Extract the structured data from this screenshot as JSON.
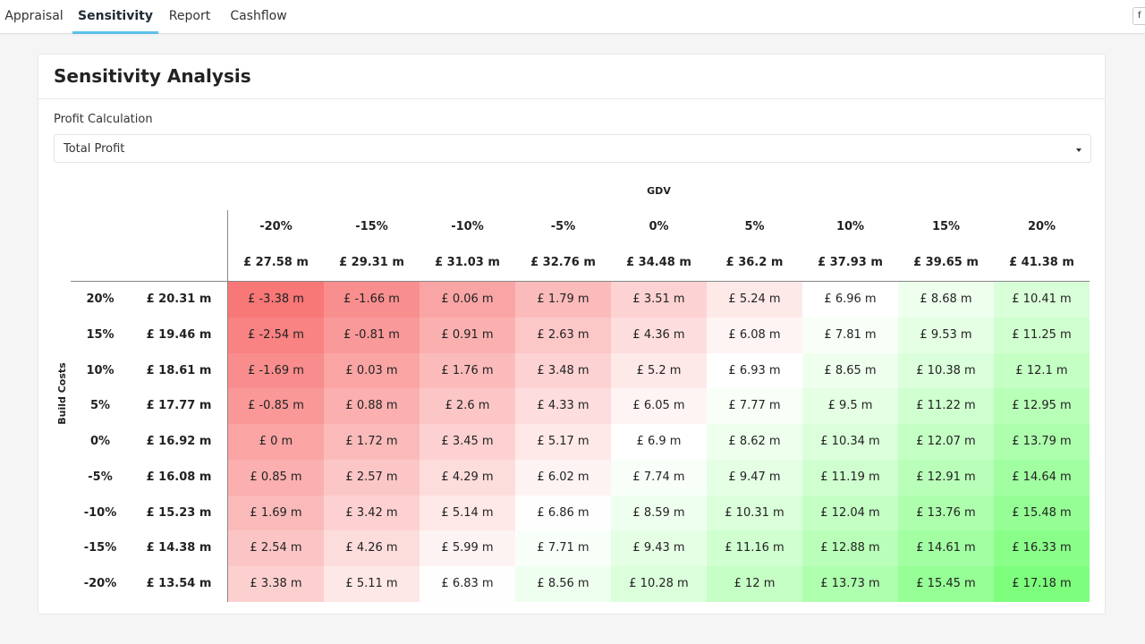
{
  "tabs": [
    {
      "label": "Appraisal",
      "active": false
    },
    {
      "label": "Sensitivity",
      "active": true
    },
    {
      "label": "Report",
      "active": false
    },
    {
      "label": "Cashflow",
      "active": false
    }
  ],
  "corner_button": {
    "label": "f"
  },
  "card": {
    "title": "Sensitivity Analysis"
  },
  "profit_calc": {
    "label": "Profit Calculation",
    "value": "Total Profit",
    "icon": "chevron-down-icon"
  },
  "table": {
    "gdv_title": "GDV",
    "build_costs_title": "Build Costs",
    "gdv_pct": [
      "-20%",
      "-15%",
      "-10%",
      "-5%",
      "0%",
      "5%",
      "10%",
      "15%",
      "20%"
    ],
    "gdv_values": [
      "£ 27.58 m",
      "£ 29.31 m",
      "£ 31.03 m",
      "£ 32.76 m",
      "£ 34.48 m",
      "£ 36.2 m",
      "£ 37.93 m",
      "£ 39.65 m",
      "£ 41.38 m"
    ],
    "build_pct": [
      "20%",
      "15%",
      "10%",
      "5%",
      "0%",
      "-5%",
      "-10%",
      "-15%",
      "-20%"
    ],
    "build_values": [
      "£ 20.31 m",
      "£ 19.46 m",
      "£ 18.61 m",
      "£ 17.77 m",
      "£ 16.92 m",
      "£ 16.08 m",
      "£ 15.23 m",
      "£ 14.38 m",
      "£ 13.54 m"
    ],
    "cells": [
      [
        "£ -3.38 m",
        "£ -1.66 m",
        "£ 0.06 m",
        "£ 1.79 m",
        "£ 3.51 m",
        "£ 5.24 m",
        "£ 6.96 m",
        "£ 8.68 m",
        "£ 10.41 m"
      ],
      [
        "£ -2.54 m",
        "£ -0.81 m",
        "£ 0.91 m",
        "£ 2.63 m",
        "£ 4.36 m",
        "£ 6.08 m",
        "£ 7.81 m",
        "£ 9.53 m",
        "£ 11.25 m"
      ],
      [
        "£ -1.69 m",
        "£ 0.03 m",
        "£ 1.76 m",
        "£ 3.48 m",
        "£ 5.2 m",
        "£ 6.93 m",
        "£ 8.65 m",
        "£ 10.38 m",
        "£ 12.1 m"
      ],
      [
        "£ -0.85 m",
        "£ 0.88 m",
        "£ 2.6 m",
        "£ 4.33 m",
        "£ 6.05 m",
        "£ 7.77 m",
        "£ 9.5 m",
        "£ 11.22 m",
        "£ 12.95 m"
      ],
      [
        "£ 0 m",
        "£ 1.72 m",
        "£ 3.45 m",
        "£ 5.17 m",
        "£ 6.9 m",
        "£ 8.62 m",
        "£ 10.34 m",
        "£ 12.07 m",
        "£ 13.79 m"
      ],
      [
        "£ 0.85 m",
        "£ 2.57 m",
        "£ 4.29 m",
        "£ 6.02 m",
        "£ 7.74 m",
        "£ 9.47 m",
        "£ 11.19 m",
        "£ 12.91 m",
        "£ 14.64 m"
      ],
      [
        "£ 1.69 m",
        "£ 3.42 m",
        "£ 5.14 m",
        "£ 6.86 m",
        "£ 8.59 m",
        "£ 10.31 m",
        "£ 12.04 m",
        "£ 13.76 m",
        "£ 15.48 m"
      ],
      [
        "£ 2.54 m",
        "£ 4.26 m",
        "£ 5.99 m",
        "£ 7.71 m",
        "£ 9.43 m",
        "£ 11.16 m",
        "£ 12.88 m",
        "£ 14.61 m",
        "£ 16.33 m"
      ],
      [
        "£ 3.38 m",
        "£ 5.11 m",
        "£ 6.83 m",
        "£ 8.56 m",
        "£ 10.28 m",
        "£ 12 m",
        "£ 13.73 m",
        "£ 15.45 m",
        "£ 17.18 m"
      ]
    ],
    "heat_colors": {
      "low": "#f87777",
      "mid": "#ffffff",
      "high": "#7dff7d"
    }
  }
}
